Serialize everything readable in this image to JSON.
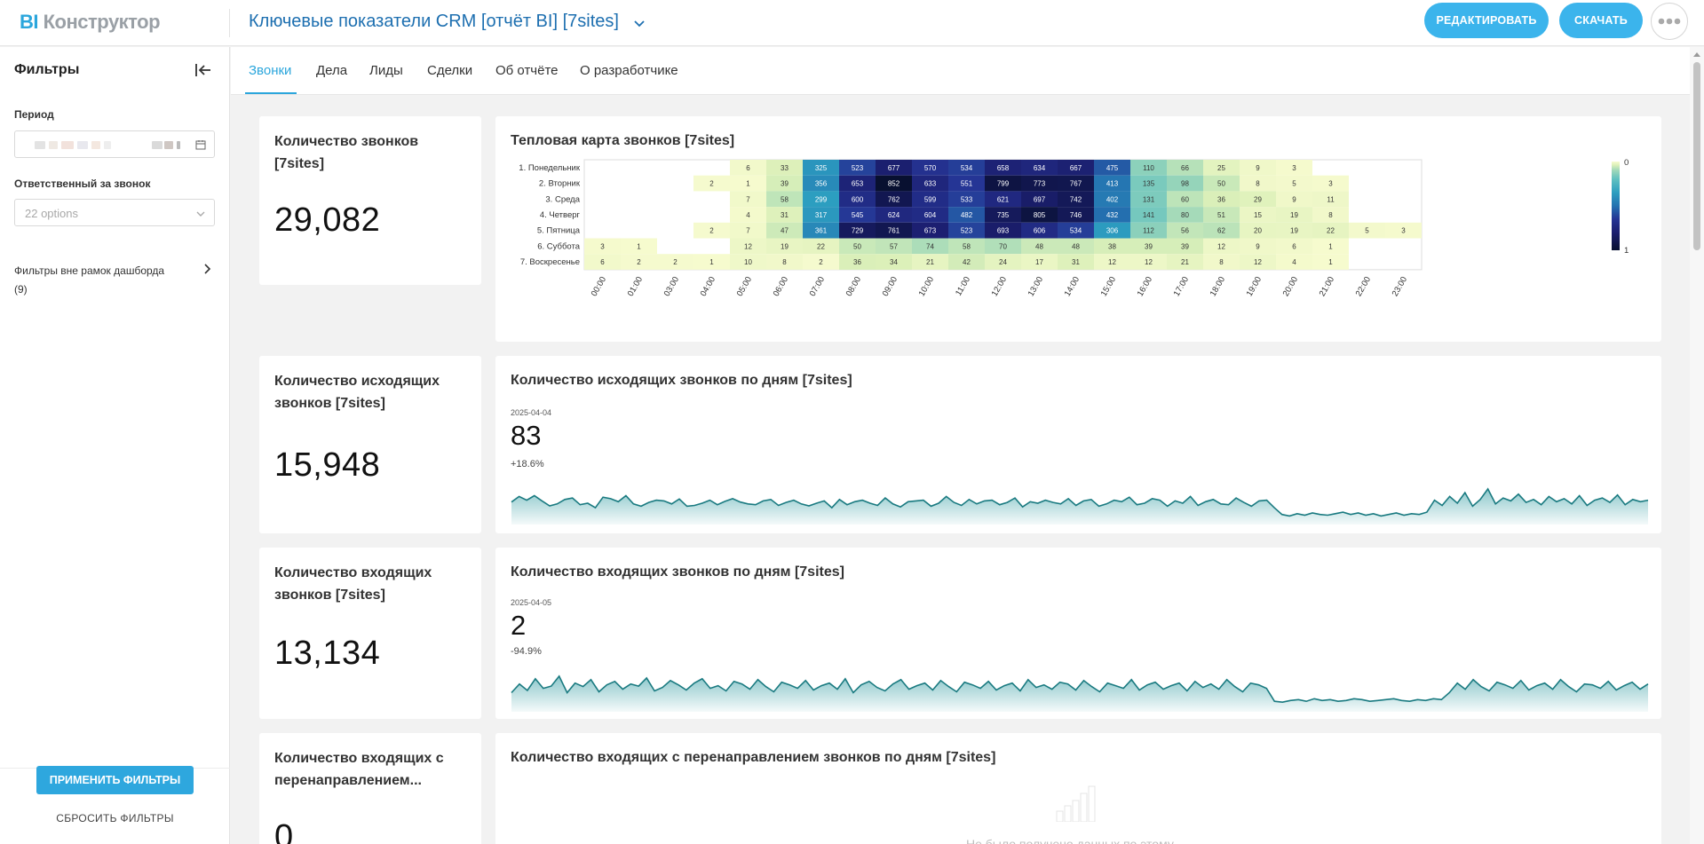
{
  "app": {
    "logo_bi": "BI",
    "logo_rest": "Конструктор"
  },
  "header": {
    "report_title": "Ключевые показатели CRM [отчёт BI] [7sites]",
    "edit_label": "РЕДАКТИРОВАТЬ",
    "download_label": "СКАЧАТЬ"
  },
  "sidebar": {
    "title": "Фильтры",
    "period_label": "Период",
    "responsible_label": "Ответственный за звонок",
    "responsible_placeholder": "22 options",
    "outside_filters_label": "Фильтры вне рамок дашборда",
    "outside_filters_count": "(9)",
    "apply_label": "ПРИМЕНИТЬ ФИЛЬТРЫ",
    "reset_label": "СБРОСИТЬ ФИЛЬТРЫ"
  },
  "tabs": [
    {
      "label": "Звонки",
      "active": true
    },
    {
      "label": "Дела",
      "active": false
    },
    {
      "label": "Лиды",
      "active": false
    },
    {
      "label": "Сделки",
      "active": false
    },
    {
      "label": "Об отчёте",
      "active": false
    },
    {
      "label": "О разработчике",
      "active": false
    }
  ],
  "kpis": {
    "total_calls": {
      "title": "Количество звонков [7sites]",
      "value": "29,082"
    },
    "outgoing_calls": {
      "title": "Количество исходящих звонков [7sites]",
      "value": "15,948"
    },
    "incoming_calls": {
      "title": "Количество входящих звонков [7sites]",
      "value": "13,134"
    },
    "redirect_calls": {
      "title": "Количество входящих с перенаправлением...",
      "value": "0"
    }
  },
  "charts": {
    "heatmap_title": "Тепловая карта звонков [7sites]",
    "outgoing": {
      "title": "Количество исходящих звонков по дням [7sites]",
      "date": "2025-04-04",
      "value": "83",
      "delta": "+18.6%"
    },
    "incoming": {
      "title": "Количество входящих звонков по дням [7sites]",
      "date": "2025-04-05",
      "value": "2",
      "delta": "-94.9%"
    },
    "redirect": {
      "title": "Количество входящих с перенаправлением звонков по дням [7sites]",
      "no_data": "Не было получено данных по этому"
    }
  },
  "chart_data": [
    {
      "type": "heatmap",
      "title": "Тепловая карта звонков [7sites]",
      "rows": [
        "1. Понедельник",
        "2. Вторник",
        "3. Среда",
        "4. Четверг",
        "5. Пятница",
        "6. Суббота",
        "7. Воскресенье"
      ],
      "columns": [
        "00:00",
        "01:00",
        "03:00",
        "04:00",
        "05:00",
        "06:00",
        "07:00",
        "08:00",
        "09:00",
        "10:00",
        "11:00",
        "12:00",
        "13:00",
        "14:00",
        "15:00",
        "16:00",
        "17:00",
        "18:00",
        "19:00",
        "20:00",
        "21:00",
        "22:00",
        "23:00"
      ],
      "values": [
        [
          null,
          null,
          null,
          null,
          6,
          33,
          325,
          523,
          677,
          570,
          534,
          658,
          634,
          667,
          475,
          110,
          66,
          25,
          9,
          3,
          null,
          null,
          null
        ],
        [
          null,
          null,
          null,
          2,
          1,
          39,
          356,
          653,
          852,
          633,
          551,
          799,
          773,
          767,
          413,
          135,
          98,
          50,
          8,
          5,
          3,
          null,
          null
        ],
        [
          null,
          null,
          null,
          null,
          7,
          58,
          299,
          600,
          762,
          599,
          533,
          621,
          697,
          742,
          402,
          131,
          60,
          36,
          29,
          9,
          11,
          null,
          null
        ],
        [
          null,
          null,
          null,
          null,
          4,
          31,
          317,
          545,
          624,
          604,
          482,
          735,
          805,
          746,
          432,
          141,
          80,
          51,
          15,
          19,
          8,
          null,
          null
        ],
        [
          null,
          null,
          null,
          2,
          7,
          47,
          361,
          729,
          761,
          673,
          523,
          693,
          606,
          534,
          306,
          112,
          56,
          62,
          20,
          19,
          22,
          5,
          3
        ],
        [
          3,
          1,
          null,
          null,
          12,
          19,
          22,
          50,
          57,
          74,
          58,
          70,
          48,
          48,
          38,
          39,
          39,
          12,
          9,
          6,
          1,
          null,
          null
        ],
        [
          6,
          2,
          2,
          1,
          10,
          8,
          2,
          36,
          34,
          21,
          42,
          24,
          17,
          31,
          12,
          12,
          21,
          8,
          12,
          4,
          1,
          null,
          null
        ]
      ],
      "colorbar": {
        "min_label": "0",
        "max_label": "1"
      }
    },
    {
      "type": "area",
      "title": "Количество исходящих звонков по дням [7sites]",
      "series": [
        {
          "name": "outgoing",
          "values": [
            55,
            70,
            60,
            72,
            58,
            45,
            50,
            62,
            66,
            48,
            52,
            40,
            68,
            64,
            56,
            72,
            50,
            44,
            54,
            60,
            58,
            50,
            63,
            44,
            46,
            52,
            60,
            48,
            57,
            64,
            55,
            50,
            48,
            58,
            62,
            46,
            54,
            60,
            50,
            45,
            52,
            58,
            40,
            62,
            48,
            56,
            60,
            52,
            46,
            66,
            50,
            42,
            56,
            58,
            60,
            44,
            52,
            70,
            54,
            46,
            62,
            50,
            58,
            60,
            48,
            54,
            66,
            42,
            56,
            52,
            60,
            54,
            50,
            64,
            46,
            58,
            62,
            44,
            50,
            60,
            56,
            68,
            48,
            52,
            64,
            60,
            44,
            58,
            52,
            70,
            46,
            56,
            62,
            50,
            48,
            66,
            54,
            44,
            58,
            60,
            40,
            22,
            18,
            24,
            20,
            26,
            22,
            20,
            24,
            28,
            22,
            26,
            20,
            24,
            18,
            22,
            26,
            20,
            24,
            22,
            28,
            60,
            46,
            70,
            52,
            80,
            44,
            62,
            90,
            50,
            66,
            58,
            76,
            54,
            62,
            48,
            70,
            56,
            64,
            50,
            72,
            46,
            60,
            66,
            54,
            74,
            48,
            62,
            56,
            60
          ]
        }
      ],
      "marker": {
        "date": "2025-04-04",
        "value": 83,
        "delta": "+18.6%"
      }
    },
    {
      "type": "area",
      "title": "Количество входящих звонков по дням [7sites]",
      "series": [
        {
          "name": "incoming",
          "values": [
            40,
            60,
            45,
            72,
            50,
            55,
            78,
            40,
            62,
            54,
            70,
            42,
            58,
            66,
            48,
            60,
            55,
            74,
            44,
            52,
            68,
            58,
            46,
            62,
            72,
            50,
            56,
            44,
            66,
            60,
            48,
            70,
            54,
            42,
            64,
            58,
            50,
            68,
            46,
            56,
            62,
            48,
            72,
            40,
            58,
            66,
            52,
            44,
            60,
            70,
            48,
            56,
            62,
            46,
            68,
            54,
            42,
            64,
            58,
            50,
            66,
            46,
            56,
            62,
            44,
            70,
            52,
            58,
            48,
            64,
            60,
            46,
            68,
            54,
            42,
            62,
            56,
            50,
            70,
            46,
            58,
            64,
            48,
            56,
            62,
            44,
            66,
            52,
            60,
            48,
            70,
            54,
            42,
            62,
            58,
            50,
            20,
            18,
            22,
            24,
            20,
            26,
            22,
            24,
            20,
            22,
            26,
            24,
            20,
            22,
            24,
            26,
            22,
            20,
            24,
            22,
            26,
            24,
            40,
            62,
            48,
            70,
            54,
            44,
            64,
            58,
            50,
            68,
            46,
            56,
            62,
            48,
            70,
            54,
            42,
            60,
            58,
            50,
            66,
            46,
            56,
            64,
            48,
            60
          ]
        }
      ],
      "marker": {
        "date": "2025-04-05",
        "value": 2,
        "delta": "-94.9%"
      }
    }
  ]
}
